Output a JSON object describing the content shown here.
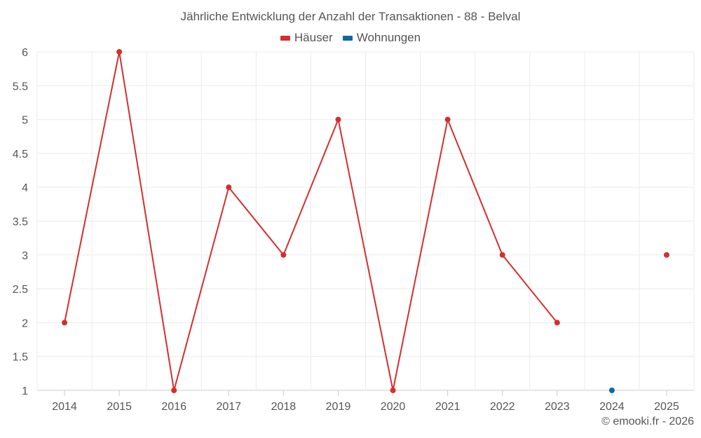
{
  "chart_data": {
    "type": "line",
    "title": "Jährliche Entwicklung der Anzahl der Transaktionen - 88 - Belval",
    "categories": [
      "2014",
      "2015",
      "2016",
      "2017",
      "2018",
      "2019",
      "2020",
      "2021",
      "2022",
      "2023",
      "2024",
      "2025"
    ],
    "ylim": [
      1,
      6
    ],
    "yticks": [
      "1",
      "1.5",
      "2",
      "2.5",
      "3",
      "3.5",
      "4",
      "4.5",
      "5",
      "5.5",
      "6"
    ],
    "grid": true,
    "legend_position": "top-center",
    "series": [
      {
        "name": "Häuser",
        "color": "#d32f2f",
        "values": [
          2,
          6,
          1,
          4,
          3,
          5,
          1,
          5,
          3,
          2,
          null,
          3
        ]
      },
      {
        "name": "Wohnungen",
        "color": "#0a6aa1",
        "values": [
          null,
          null,
          null,
          null,
          null,
          null,
          null,
          null,
          null,
          null,
          1,
          null
        ]
      }
    ]
  },
  "credits": "© emooki.fr - 2026"
}
